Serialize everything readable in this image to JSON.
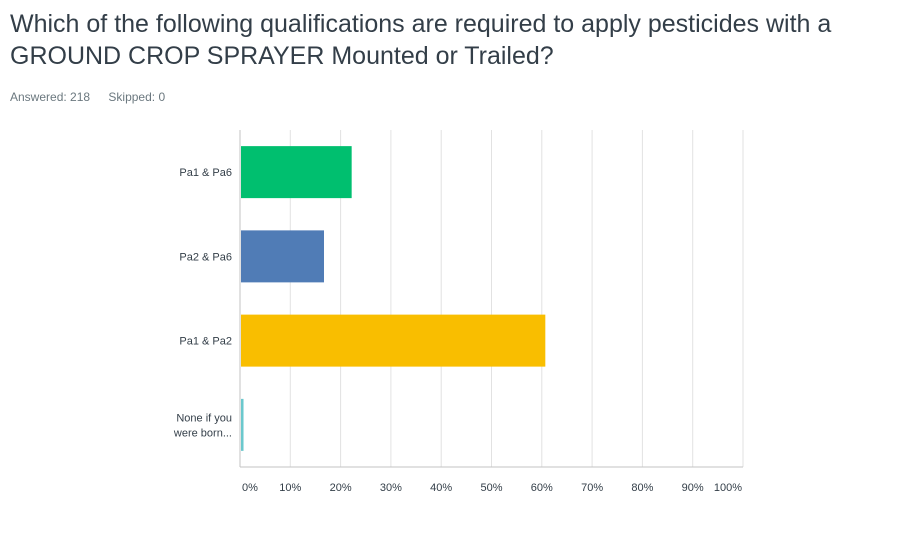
{
  "question": {
    "title": "Which of the following qualifications are required to apply pesticides with a GROUND CROP SPRAYER Mounted or Trailed?"
  },
  "stats": {
    "answered_label": "Answered: 218",
    "skipped_label": "Skipped: 0"
  },
  "chart_data": {
    "type": "bar",
    "orientation": "horizontal",
    "categories": [
      [
        "Pa1 & Pa6"
      ],
      [
        "Pa2 & Pa6"
      ],
      [
        "Pa1 & Pa2"
      ],
      [
        "None if you",
        "were born..."
      ]
    ],
    "values": [
      22,
      16.5,
      60.5,
      0.5
    ],
    "colors": [
      "#00bf6f",
      "#507cb6",
      "#f9be00",
      "#6bc8cd"
    ],
    "xlim": [
      0,
      100
    ],
    "xticks": [
      "0%",
      "10%",
      "20%",
      "30%",
      "40%",
      "50%",
      "60%",
      "70%",
      "80%",
      "90%",
      "100%"
    ],
    "grid": true
  }
}
